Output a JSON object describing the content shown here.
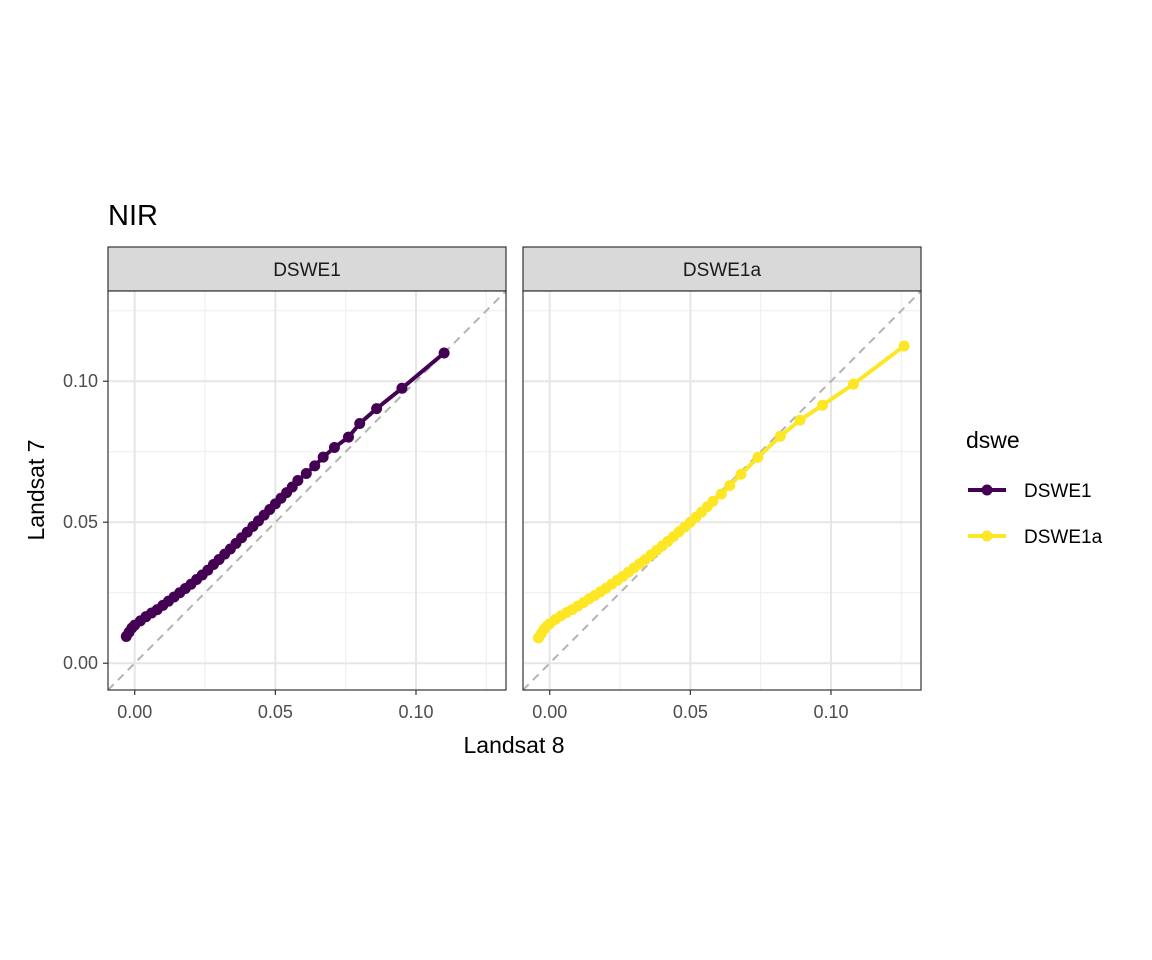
{
  "chart_data": {
    "type": "line",
    "title": "NIR",
    "xlabel": "Landsat 8",
    "ylabel": "Landsat 7",
    "xlim": [
      -0.0095,
      0.132
    ],
    "ylim": [
      -0.0095,
      0.132
    ],
    "x_ticks": [
      0.0,
      0.05,
      0.1
    ],
    "y_ticks": [
      0.0,
      0.05,
      0.1
    ],
    "x_tick_labels": [
      "0.00",
      "0.05",
      "0.10"
    ],
    "y_tick_labels": [
      "0.00",
      "0.05",
      "0.10"
    ],
    "reference_line": "y = x (dashed grey)",
    "grid": true,
    "legend_title": "dswe",
    "legend_position": "right",
    "panels": [
      {
        "strip": "DSWE1",
        "series": "DSWE1",
        "points": [
          [
            -0.003,
            0.0095
          ],
          [
            -0.002,
            0.011
          ],
          [
            -0.001,
            0.0125
          ],
          [
            0.0,
            0.0135
          ],
          [
            0.002,
            0.015
          ],
          [
            0.004,
            0.0165
          ],
          [
            0.006,
            0.0178
          ],
          [
            0.008,
            0.019
          ],
          [
            0.01,
            0.0205
          ],
          [
            0.012,
            0.022
          ],
          [
            0.014,
            0.0235
          ],
          [
            0.016,
            0.025
          ],
          [
            0.018,
            0.0265
          ],
          [
            0.02,
            0.028
          ],
          [
            0.022,
            0.0297
          ],
          [
            0.024,
            0.0313
          ],
          [
            0.026,
            0.033
          ],
          [
            0.028,
            0.035
          ],
          [
            0.03,
            0.0368
          ],
          [
            0.032,
            0.0387
          ],
          [
            0.034,
            0.0405
          ],
          [
            0.036,
            0.0425
          ],
          [
            0.038,
            0.0445
          ],
          [
            0.04,
            0.0465
          ],
          [
            0.042,
            0.0485
          ],
          [
            0.044,
            0.0505
          ],
          [
            0.046,
            0.0525
          ],
          [
            0.048,
            0.0545
          ],
          [
            0.05,
            0.0565
          ],
          [
            0.052,
            0.0585
          ],
          [
            0.054,
            0.0605
          ],
          [
            0.056,
            0.0625
          ],
          [
            0.058,
            0.0648
          ],
          [
            0.061,
            0.0673
          ],
          [
            0.064,
            0.07
          ],
          [
            0.067,
            0.0731
          ],
          [
            0.071,
            0.0765
          ],
          [
            0.076,
            0.0802
          ],
          [
            0.08,
            0.085
          ],
          [
            0.086,
            0.0903
          ],
          [
            0.095,
            0.0975
          ],
          [
            0.11,
            0.11
          ]
        ]
      },
      {
        "strip": "DSWE1a",
        "series": "DSWE1a",
        "points": [
          [
            -0.004,
            0.009
          ],
          [
            -0.003,
            0.0105
          ],
          [
            -0.002,
            0.012
          ],
          [
            -0.001,
            0.0132
          ],
          [
            0.0,
            0.014
          ],
          [
            0.002,
            0.0155
          ],
          [
            0.004,
            0.0168
          ],
          [
            0.006,
            0.018
          ],
          [
            0.008,
            0.019
          ],
          [
            0.01,
            0.0203
          ],
          [
            0.012,
            0.0215
          ],
          [
            0.014,
            0.0228
          ],
          [
            0.016,
            0.024
          ],
          [
            0.018,
            0.0253
          ],
          [
            0.02,
            0.0266
          ],
          [
            0.022,
            0.028
          ],
          [
            0.024,
            0.0294
          ],
          [
            0.026,
            0.0308
          ],
          [
            0.028,
            0.0323
          ],
          [
            0.03,
            0.0338
          ],
          [
            0.032,
            0.0353
          ],
          [
            0.034,
            0.0368
          ],
          [
            0.036,
            0.0384
          ],
          [
            0.038,
            0.04
          ],
          [
            0.04,
            0.0416
          ],
          [
            0.042,
            0.0432
          ],
          [
            0.044,
            0.0449
          ],
          [
            0.046,
            0.0466
          ],
          [
            0.048,
            0.0483
          ],
          [
            0.05,
            0.05
          ],
          [
            0.052,
            0.0518
          ],
          [
            0.054,
            0.0536
          ],
          [
            0.056,
            0.0555
          ],
          [
            0.058,
            0.0574
          ],
          [
            0.061,
            0.06
          ],
          [
            0.064,
            0.063
          ],
          [
            0.068,
            0.067
          ],
          [
            0.074,
            0.073
          ],
          [
            0.082,
            0.0805
          ],
          [
            0.089,
            0.0862
          ],
          [
            0.097,
            0.0915
          ],
          [
            0.108,
            0.099
          ],
          [
            0.126,
            0.1125
          ]
        ]
      }
    ],
    "series": [
      {
        "name": "DSWE1",
        "color": "#440154"
      },
      {
        "name": "DSWE1a",
        "color": "#FDE725"
      }
    ]
  }
}
